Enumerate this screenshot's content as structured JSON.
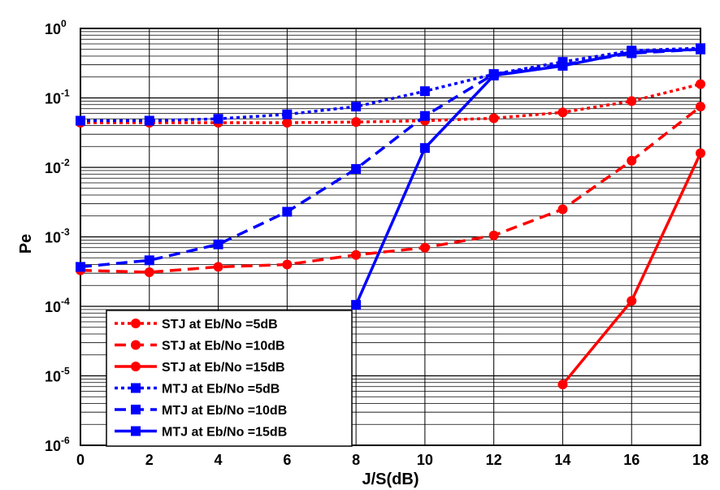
{
  "chart_data": {
    "type": "line",
    "xlabel": "J/S(dB)",
    "ylabel": "Pe",
    "x_ticks": [
      "0",
      "2",
      "4",
      "6",
      "8",
      "10",
      "12",
      "14",
      "16",
      "18"
    ],
    "y_ticks": [
      {
        "base": "10",
        "exp": "-6"
      },
      {
        "base": "10",
        "exp": "-5"
      },
      {
        "base": "10",
        "exp": "-4"
      },
      {
        "base": "10",
        "exp": "-3"
      },
      {
        "base": "10",
        "exp": "-2"
      },
      {
        "base": "10",
        "exp": "-1"
      },
      {
        "base": "10",
        "exp": "0"
      }
    ],
    "xlim": [
      0,
      18
    ],
    "ylim": [
      1e-06,
      1
    ],
    "y_scale": "log",
    "grid": true,
    "legend_position": "bottom-left",
    "series": [
      {
        "name": "STJ at Eb/No =5dB",
        "color": "#ff0000",
        "dash": "dotted",
        "marker": "circle",
        "x": [
          0,
          2,
          4,
          6,
          8,
          10,
          12,
          14,
          16,
          18
        ],
        "y": [
          0.044,
          0.044,
          0.044,
          0.044,
          0.045,
          0.047,
          0.051,
          0.062,
          0.09,
          0.158
        ]
      },
      {
        "name": "STJ at Eb/No =10dB",
        "color": "#ff0000",
        "dash": "dashed",
        "marker": "circle",
        "x": [
          0,
          2,
          4,
          6,
          8,
          10,
          12,
          14,
          16,
          18
        ],
        "y": [
          0.00033,
          0.00031,
          0.00037,
          0.0004,
          0.00055,
          0.0007,
          0.00105,
          0.0025,
          0.0125,
          0.075
        ]
      },
      {
        "name": "STJ at Eb/No =15dB",
        "color": "#ff0000",
        "dash": "solid",
        "marker": "circle",
        "x": [
          14,
          16,
          18
        ],
        "y": [
          7.5e-06,
          0.00012,
          0.016
        ]
      },
      {
        "name": "MTJ at Eb/No =5dB",
        "color": "#0000ff",
        "dash": "dotted",
        "marker": "square",
        "x": [
          0,
          2,
          4,
          6,
          8,
          10,
          12,
          14,
          16,
          18
        ],
        "y": [
          0.047,
          0.047,
          0.05,
          0.058,
          0.075,
          0.125,
          0.22,
          0.33,
          0.48,
          0.52
        ]
      },
      {
        "name": "MTJ at Eb/No =10dB",
        "color": "#0000ff",
        "dash": "dashed",
        "marker": "square",
        "x": [
          0,
          2,
          4,
          6,
          8,
          10,
          12,
          14,
          16,
          18
        ],
        "y": [
          0.00037,
          0.00046,
          0.00078,
          0.0023,
          0.0095,
          0.055,
          0.22,
          0.3,
          0.44,
          0.5
        ]
      },
      {
        "name": "MTJ at Eb/No =15dB",
        "color": "#0000ff",
        "dash": "solid",
        "marker": "square",
        "x": [
          8,
          10,
          12,
          14,
          16,
          18
        ],
        "y": [
          0.000105,
          0.019,
          0.21,
          0.29,
          0.46,
          0.5
        ]
      }
    ]
  }
}
